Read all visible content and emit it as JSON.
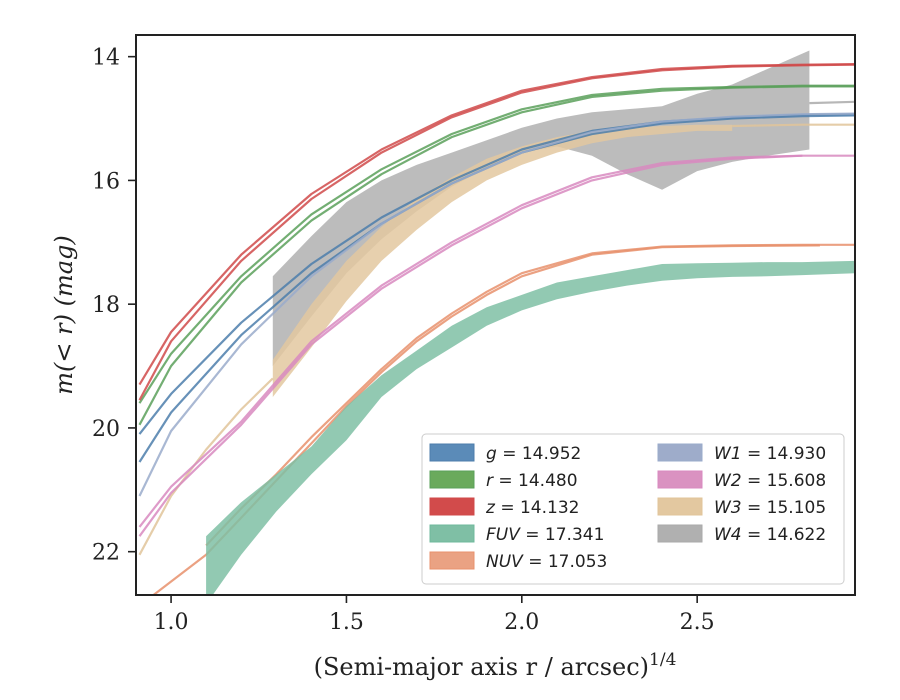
{
  "chart_data": {
    "type": "line",
    "xlabel": "(Semi-major axis r / arcsec)",
    "xlabel_exponent": "1/4",
    "ylabel_prefix": "m(< r) (mag)",
    "xlim": [
      0.9,
      2.95
    ],
    "ylim": [
      22.7,
      13.65
    ],
    "y_inverted": true,
    "xticks": [
      1.0,
      1.5,
      2.0,
      2.5
    ],
    "xtick_labels": [
      "1.0",
      "1.5",
      "2.0",
      "2.5"
    ],
    "yticks": [
      14,
      16,
      18,
      20,
      22
    ],
    "ytick_labels": [
      "14",
      "16",
      "18",
      "20",
      "22"
    ],
    "legend_position": "lower-right",
    "series": [
      {
        "key": "g",
        "name": "g = 14.952",
        "label_var": "g",
        "label_value": "14.952",
        "color": "#4c7eab",
        "band_color": "#5b8bb8",
        "asymptote": 14.952,
        "lines": [
          {
            "x": [
              0.91,
              1.0,
              1.2,
              1.4,
              1.6,
              1.8,
              2.0,
              2.2,
              2.4,
              2.6,
              2.8,
              2.95
            ],
            "y": [
              20.55,
              19.75,
              18.5,
              17.5,
              16.7,
              16.05,
              15.55,
              15.25,
              15.08,
              15.0,
              14.96,
              14.95
            ]
          },
          {
            "x": [
              0.91,
              1.0,
              1.2,
              1.4,
              1.6,
              1.8,
              2.0,
              2.2,
              2.4,
              2.6,
              2.8,
              2.95
            ],
            "y": [
              20.1,
              19.45,
              18.3,
              17.35,
              16.6,
              16.0,
              15.5,
              15.2,
              15.05,
              14.98,
              14.94,
              14.93
            ]
          }
        ]
      },
      {
        "key": "r",
        "name": "r = 14.480",
        "label_var": "r",
        "label_value": "14.480",
        "color": "#5aa05a",
        "band_color": "#6aaa5c",
        "asymptote": 14.48,
        "lines": [
          {
            "x": [
              0.91,
              1.0,
              1.2,
              1.4,
              1.6,
              1.8,
              2.0,
              2.2,
              2.4,
              2.6,
              2.8,
              2.95
            ],
            "y": [
              19.95,
              19.0,
              17.65,
              16.65,
              15.9,
              15.3,
              14.9,
              14.65,
              14.55,
              14.5,
              14.48,
              14.48
            ]
          },
          {
            "x": [
              0.91,
              1.0,
              1.2,
              1.4,
              1.6,
              1.8,
              2.0,
              2.2,
              2.4,
              2.6,
              2.8,
              2.95
            ],
            "y": [
              19.6,
              18.8,
              17.55,
              16.55,
              15.82,
              15.25,
              14.85,
              14.62,
              14.52,
              14.49,
              14.47,
              14.47
            ]
          }
        ]
      },
      {
        "key": "z",
        "name": "z = 14.132",
        "label_var": "z",
        "label_value": "14.132",
        "color": "#d04a4a",
        "band_color": "#d24b4b",
        "asymptote": 14.132,
        "lines": [
          {
            "x": [
              0.91,
              1.0,
              1.2,
              1.4,
              1.6,
              1.8,
              2.0,
              2.2,
              2.4,
              2.6,
              2.8,
              2.95
            ],
            "y": [
              19.55,
              18.6,
              17.3,
              16.3,
              15.55,
              14.98,
              14.58,
              14.35,
              14.22,
              14.16,
              14.14,
              14.13
            ]
          },
          {
            "x": [
              0.91,
              1.0,
              1.2,
              1.4,
              1.6,
              1.8,
              2.0,
              2.2,
              2.4,
              2.6,
              2.8,
              2.95
            ],
            "y": [
              19.3,
              18.45,
              17.2,
              16.22,
              15.5,
              14.95,
              14.55,
              14.33,
              14.2,
              14.15,
              14.13,
              14.12
            ]
          }
        ]
      },
      {
        "key": "FUV",
        "name": "FUV = 17.341",
        "label_var": "FUV",
        "label_value": "17.341",
        "color": "#6fb89c",
        "band_color": "#7fbfa5",
        "asymptote": 17.341,
        "band": {
          "x": [
            1.1,
            1.2,
            1.3,
            1.4,
            1.5,
            1.6,
            1.7,
            1.8,
            1.9,
            2.0,
            2.1,
            2.2,
            2.3,
            2.4,
            2.5,
            2.6,
            2.7,
            2.8,
            2.95
          ],
          "lower": [
            21.75,
            21.2,
            20.75,
            20.3,
            19.65,
            19.15,
            18.75,
            18.35,
            18.05,
            17.85,
            17.65,
            17.55,
            17.45,
            17.35,
            17.34,
            17.33,
            17.32,
            17.32,
            17.3
          ],
          "upper": [
            22.85,
            22.05,
            21.35,
            20.75,
            20.2,
            19.5,
            19.05,
            18.7,
            18.35,
            18.1,
            17.92,
            17.8,
            17.7,
            17.62,
            17.58,
            17.56,
            17.55,
            17.53,
            17.5
          ]
        }
      },
      {
        "key": "NUV",
        "name": "NUV = 17.053",
        "label_var": "NUV",
        "label_value": "17.053",
        "color": "#e8916c",
        "band_color": "#eaa283",
        "asymptote": 17.053,
        "lines": [
          {
            "x": [
              0.95,
              1.1,
              1.2,
              1.3,
              1.4,
              1.5,
              1.6,
              1.7,
              1.8,
              1.9,
              2.0,
              2.2,
              2.4,
              2.6,
              2.85
            ],
            "y": [
              22.7,
              22.05,
              21.45,
              20.85,
              20.25,
              19.65,
              19.1,
              18.6,
              18.2,
              17.85,
              17.55,
              17.2,
              17.08,
              17.06,
              17.05
            ]
          },
          {
            "x": [
              1.1,
              1.2,
              1.3,
              1.4,
              1.5,
              1.6,
              1.7,
              1.8,
              1.9,
              2.0,
              2.2,
              2.4,
              2.6,
              2.8,
              2.95
            ],
            "y": [
              21.9,
              21.3,
              20.75,
              20.15,
              19.6,
              19.05,
              18.55,
              18.15,
              17.8,
              17.5,
              17.18,
              17.07,
              17.05,
              17.04,
              17.04
            ]
          }
        ]
      },
      {
        "key": "W1",
        "name": "W1 = 14.930",
        "label_var": "W1",
        "label_value": "14.930",
        "color": "#9aabcb",
        "band_color": "#9eacca",
        "asymptote": 14.93,
        "lines": [
          {
            "x": [
              0.91,
              1.0,
              1.2,
              1.4,
              1.6,
              1.8,
              2.0,
              2.2,
              2.4,
              2.6,
              2.8,
              2.95
            ],
            "y": [
              21.1,
              20.05,
              18.65,
              17.55,
              16.7,
              16.05,
              15.55,
              15.22,
              15.05,
              14.97,
              14.93,
              14.92
            ]
          }
        ]
      },
      {
        "key": "W2",
        "name": "W2 = 15.608",
        "label_var": "W2",
        "label_value": "15.608",
        "color": "#d88ac0",
        "band_color": "#da92c1",
        "asymptote": 15.608,
        "lines": [
          {
            "x": [
              0.91,
              1.0,
              1.2,
              1.4,
              1.6,
              1.8,
              2.0,
              2.2,
              2.4,
              2.6,
              2.8
            ],
            "y": [
              21.75,
              21.05,
              19.95,
              18.65,
              17.75,
              17.05,
              16.45,
              16.0,
              15.75,
              15.65,
              15.6
            ]
          },
          {
            "x": [
              0.91,
              1.0,
              1.2,
              1.4,
              1.6,
              1.8,
              2.0,
              2.2,
              2.4,
              2.6,
              2.8,
              2.95
            ],
            "y": [
              21.6,
              20.95,
              19.9,
              18.6,
              17.7,
              17.0,
              16.4,
              15.95,
              15.72,
              15.63,
              15.6,
              15.6
            ]
          }
        ]
      },
      {
        "key": "W3",
        "name": "W3 = 15.105",
        "label_var": "W3",
        "label_value": "15.105",
        "color": "#e0c49a",
        "band_color": "#e3c8a0",
        "asymptote": 15.105,
        "band": {
          "x": [
            1.29,
            1.4,
            1.5,
            1.6,
            1.7,
            1.8,
            1.9,
            2.0,
            2.1,
            2.2,
            2.3,
            2.4,
            2.5,
            2.6
          ],
          "lower": [
            18.9,
            18.0,
            17.3,
            16.75,
            16.3,
            15.95,
            15.65,
            15.45,
            15.3,
            15.2,
            15.15,
            15.12,
            15.1,
            15.1
          ],
          "upper": [
            19.5,
            18.7,
            17.95,
            17.3,
            16.8,
            16.35,
            16.0,
            15.75,
            15.55,
            15.4,
            15.3,
            15.25,
            15.2,
            15.2
          ]
        },
        "lines": [
          {
            "x": [
              0.91,
              1.0,
              1.1,
              1.2,
              1.29
            ],
            "y": [
              22.05,
              21.1,
              20.35,
              19.7,
              19.2
            ]
          },
          {
            "x": [
              2.6,
              2.8,
              2.95
            ],
            "y": [
              15.12,
              15.1,
              15.1
            ]
          }
        ]
      },
      {
        "key": "W4",
        "name": "W4 = 14.622",
        "label_var": "W4",
        "label_value": "14.622",
        "color": "#aaaaaa",
        "band_color": "#b0b0b0",
        "asymptote": 14.622,
        "band": {
          "x": [
            1.29,
            1.4,
            1.5,
            1.6,
            1.7,
            1.8,
            1.9,
            2.0,
            2.1,
            2.2,
            2.3,
            2.4,
            2.5,
            2.6,
            2.7,
            2.82
          ],
          "lower": [
            17.55,
            16.9,
            16.35,
            16.0,
            15.75,
            15.55,
            15.35,
            15.15,
            15.0,
            14.9,
            14.85,
            14.8,
            14.6,
            14.45,
            14.2,
            13.9
          ],
          "upper": [
            19.0,
            18.2,
            17.5,
            16.95,
            16.5,
            16.1,
            15.8,
            15.55,
            15.45,
            15.6,
            15.9,
            16.15,
            15.85,
            15.7,
            15.6,
            15.5
          ]
        },
        "lines": [
          {
            "x": [
              2.82,
              2.95
            ],
            "y": [
              14.75,
              14.73
            ]
          }
        ]
      }
    ]
  }
}
